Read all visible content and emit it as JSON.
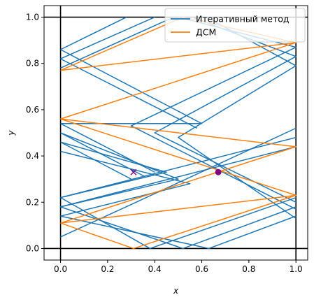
{
  "chart_data": {
    "type": "line",
    "xlabel": "x",
    "ylabel": "y",
    "xlim": [
      -0.07,
      1.05
    ],
    "ylim": [
      -0.05,
      1.05
    ],
    "xticks": [
      "0.0",
      "0.2",
      "0.4",
      "0.6",
      "0.8",
      "1.0"
    ],
    "yticks": [
      "0.0",
      "0.2",
      "0.4",
      "0.6",
      "0.8",
      "1.0"
    ],
    "grid": false,
    "legend_position": "top-right",
    "box_lines": [
      [
        0,
        0
      ],
      [
        1,
        0
      ],
      [
        1,
        1
      ],
      [
        0,
        1
      ]
    ],
    "series": [
      {
        "name": "Итеративный метод",
        "color": "#1f77b4",
        "segments": [
          [
            [
              0.28,
              1.0
            ],
            [
              0.0,
              0.86
            ],
            [
              0.0,
              0.86
            ]
          ],
          [
            [
              0.4,
              1.0
            ],
            [
              0.0,
              0.82
            ]
          ],
          [
            [
              0.48,
              1.0
            ],
            [
              0.0,
              0.78
            ]
          ],
          [
            [
              0.0,
              0.86
            ],
            [
              0.6,
              0.54
            ],
            [
              0.0,
              0.54
            ]
          ],
          [
            [
              0.0,
              0.82
            ],
            [
              0.58,
              0.52
            ]
          ],
          [
            [
              0.0,
              0.54
            ],
            [
              0.4,
              0.33
            ]
          ],
          [
            [
              0.0,
              0.5
            ],
            [
              0.36,
              0.31
            ]
          ],
          [
            [
              0.0,
              0.46
            ],
            [
              0.3,
              0.3
            ]
          ],
          [
            [
              0.5,
              1.0
            ],
            [
              1.0,
              0.87
            ],
            [
              0.3,
              0.53
            ],
            [
              1.0,
              0.17
            ]
          ],
          [
            [
              0.56,
              1.0
            ],
            [
              1.0,
              0.83
            ],
            [
              0.4,
              0.5
            ],
            [
              1.0,
              0.2
            ]
          ],
          [
            [
              0.62,
              1.0
            ],
            [
              1.0,
              0.79
            ],
            [
              0.5,
              0.48
            ],
            [
              1.0,
              0.13
            ]
          ],
          [
            [
              1.0,
              0.52
            ],
            [
              0.3,
              0.19
            ],
            [
              0.0,
              0.05
            ]
          ],
          [
            [
              1.0,
              0.48
            ],
            [
              0.0,
              0.22
            ],
            [
              0.38,
              0.0
            ]
          ],
          [
            [
              1.0,
              0.44
            ],
            [
              0.0,
              0.18
            ],
            [
              0.52,
              0.0
            ]
          ],
          [
            [
              0.0,
              0.14
            ],
            [
              0.63,
              0.0
            ]
          ],
          [
            [
              0.0,
              0.22
            ],
            [
              0.45,
              0.33
            ],
            [
              0.0,
              0.46
            ]
          ],
          [
            [
              0.0,
              0.18
            ],
            [
              0.5,
              0.3
            ],
            [
              0.0,
              0.5
            ]
          ],
          [
            [
              0.0,
              0.14
            ],
            [
              0.55,
              0.28
            ],
            [
              0.0,
              0.42
            ]
          ],
          [
            [
              0.63,
              0.0
            ],
            [
              1.0,
              0.14
            ]
          ],
          [
            [
              0.52,
              0.0
            ],
            [
              1.0,
              0.18
            ]
          ],
          [
            [
              0.38,
              0.0
            ],
            [
              1.0,
              0.22
            ]
          ]
        ]
      },
      {
        "name": "ДСМ",
        "color": "#ff7f0e",
        "segments": [
          [
            [
              0.0,
              0.77
            ],
            [
              0.52,
              1.0
            ],
            [
              1.0,
              0.89
            ],
            [
              0.0,
              0.77
            ]
          ],
          [
            [
              0.0,
              0.56
            ],
            [
              1.0,
              0.89
            ]
          ],
          [
            [
              0.0,
              0.56
            ],
            [
              1.0,
              0.44
            ],
            [
              0.0,
              0.11
            ]
          ],
          [
            [
              0.0,
              0.11
            ],
            [
              1.0,
              0.23
            ],
            [
              0.31,
              0.0
            ]
          ],
          [
            [
              0.0,
              0.56
            ],
            [
              1.0,
              0.23
            ]
          ],
          [
            [
              0.31,
              0.0
            ],
            [
              0.0,
              0.11
            ]
          ]
        ]
      }
    ],
    "markers": [
      {
        "type": "x",
        "x": 0.31,
        "y": 0.33,
        "color": "#800080"
      },
      {
        "type": "circle",
        "x": 0.67,
        "y": 0.33,
        "color": "#800080"
      }
    ]
  }
}
